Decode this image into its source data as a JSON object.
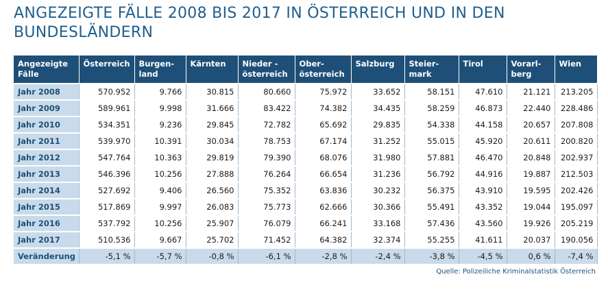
{
  "title_lines": [
    "ANGEZEIGTE FÄLLE 2008 BIS 2017 IN ÖSTERREICH UND IN DEN",
    "BUNDESLÄNDERN"
  ],
  "source": "Quelle: Polizeiliche Kriminalstatistik Österreich",
  "colors": {
    "header": "#1e4f78",
    "rowhead": "#c9dbea",
    "title": "#1f5e8c"
  },
  "chart_data": {
    "type": "table",
    "title": "ANGEZEIGTE FÄLLE 2008 BIS 2017 IN ÖSTERREICH UND IN DEN BUNDESLÄNDERN",
    "columns": [
      {
        "label": "Angezeigte Fälle",
        "lines": [
          "Angezeigte",
          "Fälle"
        ]
      },
      {
        "label": "Österreich",
        "lines": [
          "Österreich"
        ]
      },
      {
        "label": "Burgen-land",
        "lines": [
          "Burgen-",
          "land"
        ]
      },
      {
        "label": "Kärnten",
        "lines": [
          "Kärnten"
        ]
      },
      {
        "label": "Nieder - österreich",
        "lines": [
          "Nieder -",
          "österreich"
        ]
      },
      {
        "label": "Ober-österreich",
        "lines": [
          "Ober-",
          "österreich"
        ]
      },
      {
        "label": "Salzburg",
        "lines": [
          "Salzburg"
        ]
      },
      {
        "label": "Steier-mark",
        "lines": [
          "Steier-",
          "mark"
        ]
      },
      {
        "label": "Tirol",
        "lines": [
          "Tirol"
        ]
      },
      {
        "label": "Vorarl-berg",
        "lines": [
          "Vorarl-",
          "berg"
        ]
      },
      {
        "label": "Wien",
        "lines": [
          "Wien"
        ]
      }
    ],
    "rows": [
      {
        "label": "Jahr 2008",
        "values": [
          "570.952",
          "9.766",
          "30.815",
          "80.660",
          "75.972",
          "33.652",
          "58.151",
          "47.610",
          "21.121",
          "213.205"
        ]
      },
      {
        "label": "Jahr 2009",
        "values": [
          "589.961",
          "9.998",
          "31.666",
          "83.422",
          "74.382",
          "34.435",
          "58.259",
          "46.873",
          "22.440",
          "228.486"
        ]
      },
      {
        "label": "Jahr 2010",
        "values": [
          "534.351",
          "9.236",
          "29.845",
          "72.782",
          "65.692",
          "29.835",
          "54.338",
          "44.158",
          "20.657",
          "207.808"
        ]
      },
      {
        "label": "Jahr 2011",
        "values": [
          "539.970",
          "10.391",
          "30.034",
          "78.753",
          "67.174",
          "31.252",
          "55.015",
          "45.920",
          "20.611",
          "200.820"
        ]
      },
      {
        "label": "Jahr 2012",
        "values": [
          "547.764",
          "10.363",
          "29.819",
          "79.390",
          "68.076",
          "31.980",
          "57.881",
          "46.470",
          "20.848",
          "202.937"
        ]
      },
      {
        "label": "Jahr 2013",
        "values": [
          "546.396",
          "10.256",
          "27.888",
          "76.264",
          "66.654",
          "31.236",
          "56.792",
          "44.916",
          "19.887",
          "212.503"
        ]
      },
      {
        "label": "Jahr 2014",
        "values": [
          "527.692",
          "9.406",
          "26.560",
          "75.352",
          "63.836",
          "30.232",
          "56.375",
          "43.910",
          "19.595",
          "202.426"
        ]
      },
      {
        "label": "Jahr 2015",
        "values": [
          "517.869",
          "9.997",
          "26.083",
          "75.773",
          "62.666",
          "30.366",
          "55.491",
          "43.352",
          "19.044",
          "195.097"
        ]
      },
      {
        "label": "Jahr 2016",
        "values": [
          "537.792",
          "10.256",
          "25.907",
          "76.079",
          "66.241",
          "33.168",
          "57.436",
          "43.560",
          "19.926",
          "205.219"
        ]
      },
      {
        "label": "Jahr 2017",
        "values": [
          "510.536",
          "9.667",
          "25.702",
          "71.452",
          "64.382",
          "32.374",
          "55.255",
          "41.611",
          "20.037",
          "190.056"
        ]
      },
      {
        "label": "Veränderung",
        "values": [
          "-5,1 %",
          "-5,7 %",
          "-0,8 %",
          "-6,1 %",
          "-2,8 %",
          "-2,4 %",
          "-3,8 %",
          "-4,5 %",
          "0,6 %",
          "-7,4 %"
        ],
        "change": true
      }
    ]
  }
}
